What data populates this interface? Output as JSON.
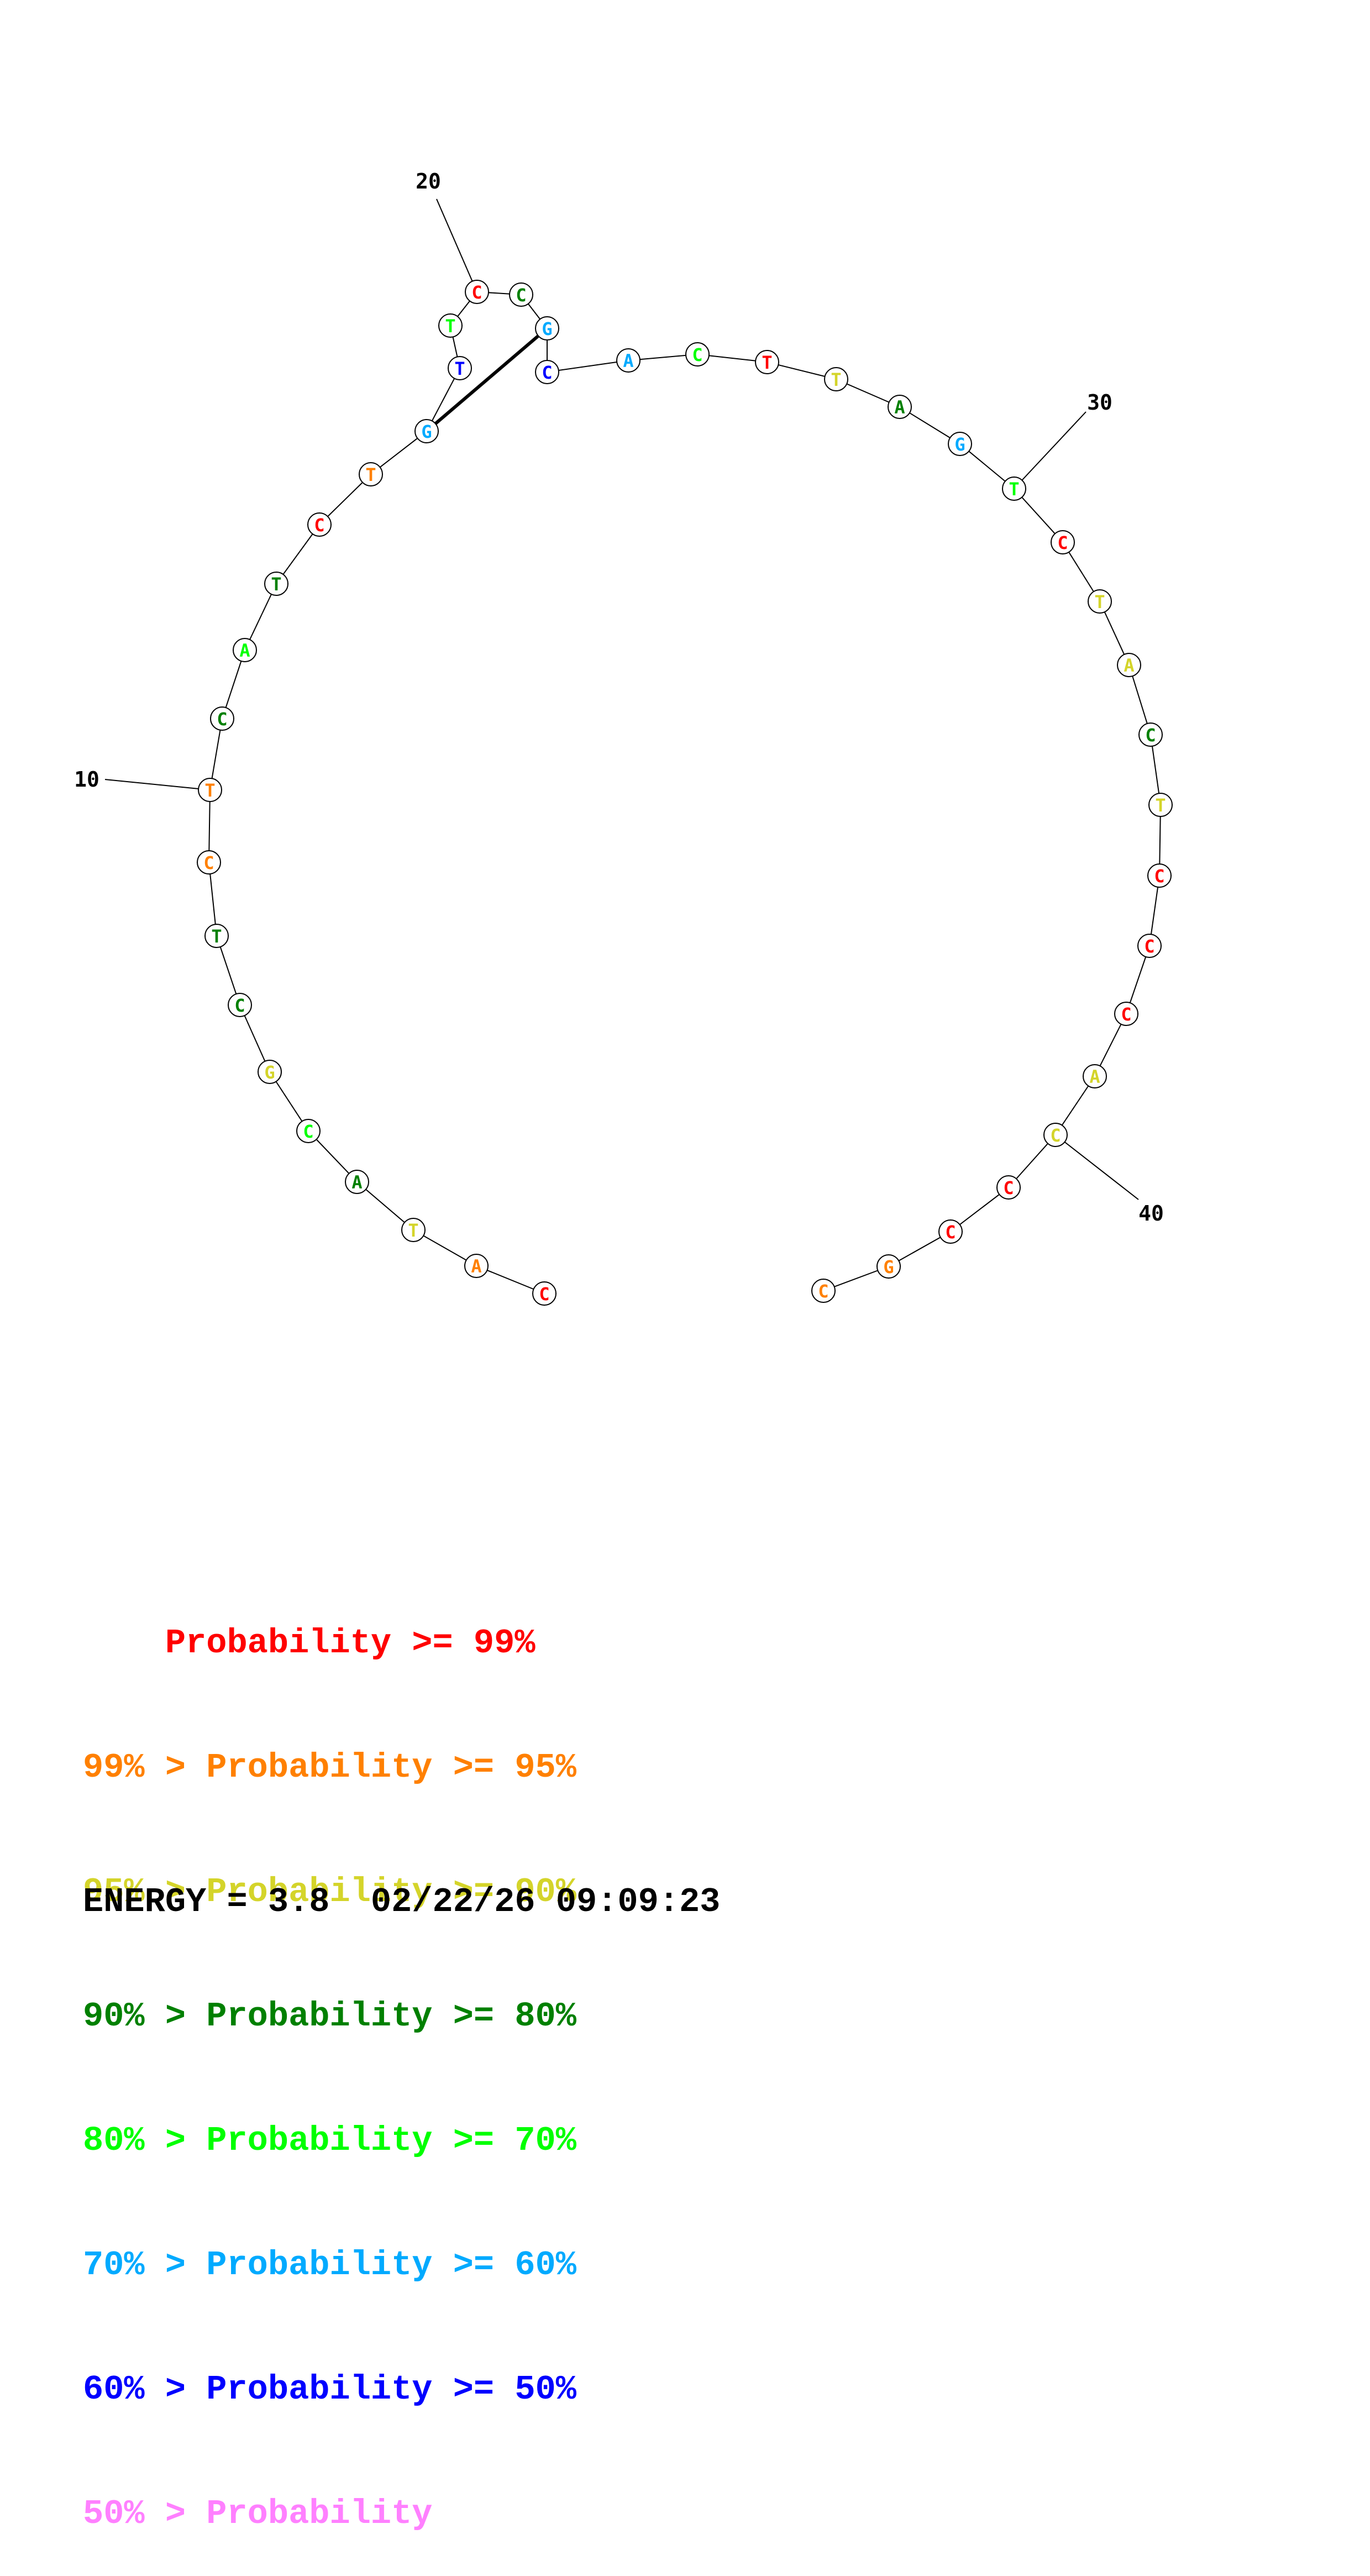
{
  "diagram": {
    "sequence": [
      "C",
      "A",
      "T",
      "A",
      "C",
      "G",
      "C",
      "T",
      "C",
      "T",
      "C",
      "A",
      "T",
      "C",
      "T",
      "G",
      "T",
      "T",
      "C",
      "C",
      "G",
      "C",
      "A",
      "C",
      "T",
      "T",
      "A",
      "G",
      "T",
      "C",
      "T",
      "A",
      "C",
      "T",
      "C",
      "C",
      "C",
      "A",
      "C",
      "C",
      "C",
      "G",
      "C"
    ],
    "probability_bin": [
      0,
      1,
      2,
      3,
      4,
      2,
      3,
      3,
      1,
      1,
      3,
      4,
      3,
      0,
      1,
      5,
      6,
      4,
      0,
      3,
      5,
      6,
      5,
      4,
      0,
      2,
      3,
      5,
      4,
      0,
      2,
      2,
      3,
      2,
      0,
      0,
      0,
      2,
      2,
      0,
      0,
      1,
      1
    ],
    "position_labels": [
      {
        "text": "10",
        "base_index": 9
      },
      {
        "text": "20",
        "base_index": 18
      },
      {
        "text": "30",
        "base_index": 28
      },
      {
        "text": "40",
        "base_index": 38
      }
    ],
    "pairs": [
      [
        15,
        20
      ]
    ]
  },
  "legend": {
    "rows": [
      {
        "prefix": "    ",
        "text": "Probability >= 99%",
        "color": "#ff0000"
      },
      {
        "prefix": "99% > ",
        "text": "Probability >= 95%",
        "color": "#ff8000"
      },
      {
        "prefix": "95% > ",
        "text": "Probability >= 90%",
        "color": "#d4d42a"
      },
      {
        "prefix": "90% > ",
        "text": "Probability >= 80%",
        "color": "#008000"
      },
      {
        "prefix": "80% > ",
        "text": "Probability >= 70%",
        "color": "#00ff00"
      },
      {
        "prefix": "70% > ",
        "text": "Probability >= 60%",
        "color": "#00aaff"
      },
      {
        "prefix": "60% > ",
        "text": "Probability >= 50%",
        "color": "#0000ff"
      },
      {
        "prefix": "50% > ",
        "text": "Probability",
        "color": "#ff80ff"
      }
    ]
  },
  "footer": {
    "energy": "ENERGY = 3.8  02/22/26 09:09:23"
  }
}
